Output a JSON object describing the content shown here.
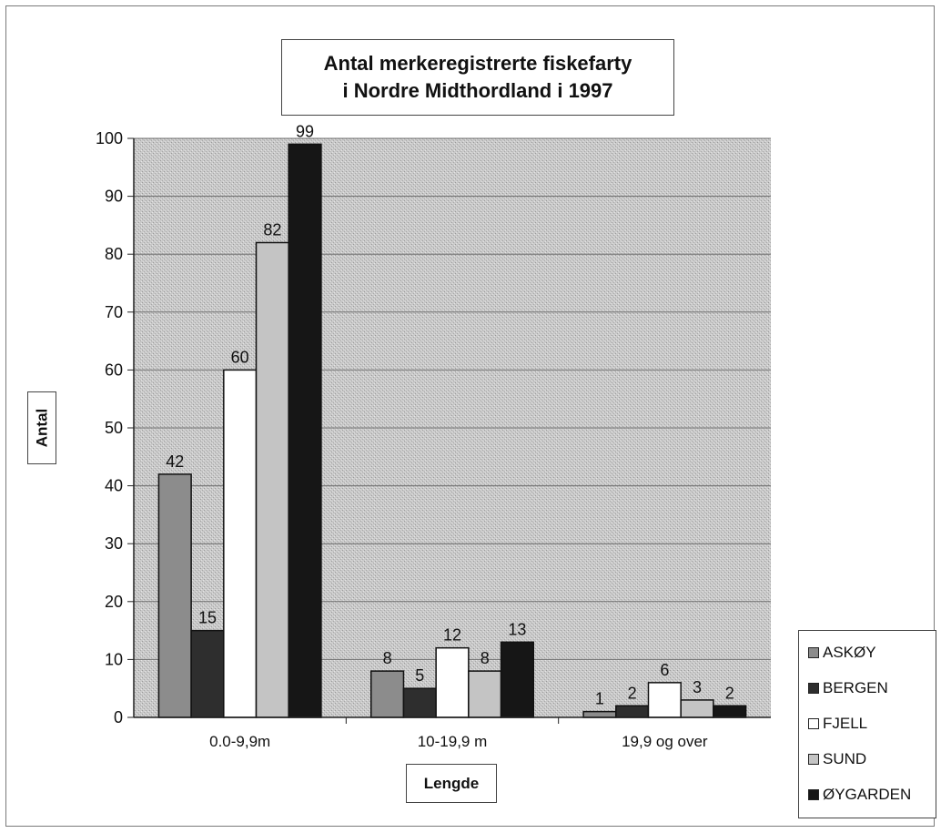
{
  "chart_data": {
    "type": "bar",
    "title_lines": [
      "Antal merkeregistrerte fiskefarty",
      "i Nordre Midthordland i 1997"
    ],
    "xlabel": "Lengde",
    "ylabel": "Antal",
    "categories": [
      "0.0-9,9m",
      "10-19,9 m",
      "19,9 og over"
    ],
    "series": [
      {
        "name": "ASKØY",
        "values": [
          42,
          8,
          1
        ],
        "color": "#8c8c8c"
      },
      {
        "name": "BERGEN",
        "values": [
          15,
          5,
          2
        ],
        "color": "#2e2e2e"
      },
      {
        "name": "FJELL",
        "values": [
          60,
          12,
          6
        ],
        "color": "#ffffff"
      },
      {
        "name": "SUND",
        "values": [
          82,
          8,
          3
        ],
        "color": "#c4c4c4"
      },
      {
        "name": "ØYGARDEN",
        "values": [
          99,
          13,
          2
        ],
        "color": "#161616"
      }
    ],
    "ylim": [
      0,
      100
    ],
    "yticks": [
      0,
      10,
      20,
      30,
      40,
      50,
      60,
      70,
      80,
      90,
      100
    ],
    "grid": true,
    "legend_position": "right",
    "plot_background": "#c8c8c8"
  }
}
